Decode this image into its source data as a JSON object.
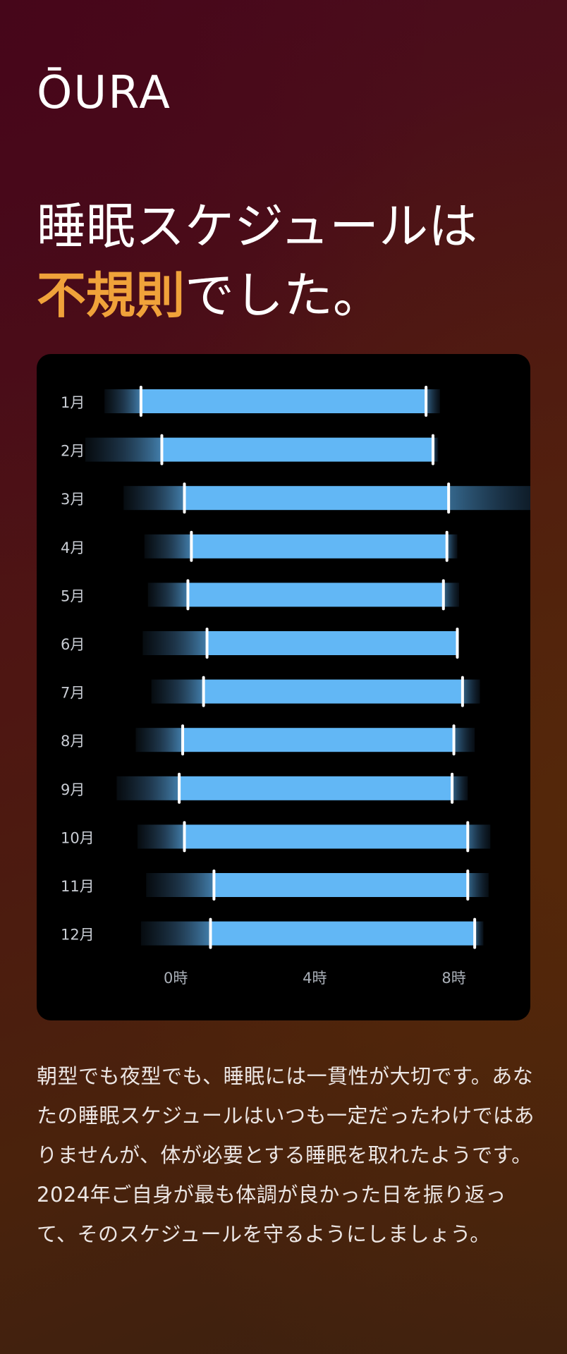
{
  "brand": {
    "logo_text": "ŌURA"
  },
  "headline": {
    "line1": "睡眠スケジュールは",
    "accent": "不規則",
    "line2_rest": "でした。"
  },
  "colors": {
    "accent": "#f0a23a",
    "bar": "#62b7f5",
    "card_bg": "#000000",
    "marker": "#ffffff"
  },
  "chart_data": {
    "type": "bar",
    "orientation": "horizontal-range",
    "categories": [
      "1月",
      "2月",
      "3月",
      "4月",
      "5月",
      "6月",
      "7月",
      "8月",
      "9月",
      "10月",
      "11月",
      "12月"
    ],
    "series": [
      {
        "bedtime": [
          -1.0,
          -0.4,
          0.25,
          0.45,
          0.35,
          0.9,
          0.8,
          0.2,
          0.1,
          0.25,
          1.1,
          1.0
        ],
        "wake": [
          7.2,
          7.4,
          7.85,
          7.8,
          7.7,
          8.1,
          8.25,
          8.0,
          7.95,
          8.4,
          8.4,
          8.6
        ],
        "spread_start": [
          -2.05,
          -2.6,
          -1.5,
          -0.9,
          -0.8,
          -0.95,
          -0.7,
          -1.15,
          -1.7,
          -1.1,
          -0.85,
          -1.0
        ],
        "spread_end": [
          7.6,
          7.55,
          11.0,
          8.1,
          8.15,
          8.15,
          8.75,
          8.6,
          8.4,
          9.05,
          9.0,
          8.85
        ]
      }
    ],
    "x_ticks": [
      {
        "value": 0,
        "label": "0時"
      },
      {
        "value": 4,
        "label": "4時"
      },
      {
        "value": 8,
        "label": "8時"
      }
    ],
    "xlim": [
      -4.0,
      10.2
    ]
  },
  "body": {
    "text": "朝型でも夜型でも、睡眠には一貫性が大切です。あなたの睡眠スケジュールはいつも一定だったわけではありませんが、体が必要とする睡眠を取れたようです。2024年ご自身が最も体調が良かった日を振り返って、そのスケジュールを守るようにしましょう。"
  }
}
